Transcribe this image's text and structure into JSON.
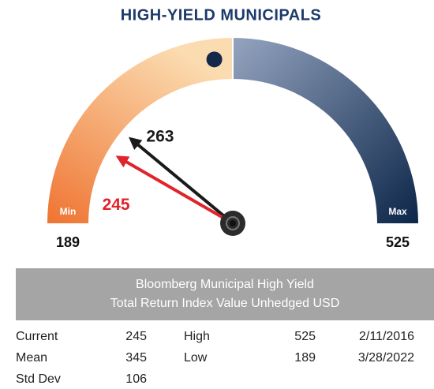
{
  "chart_data": {
    "type": "gauge",
    "title": "HIGH-YIELD MUNICIPALS",
    "min": 189,
    "max": 525,
    "min_label": "Min",
    "max_label": "Max",
    "needles": [
      {
        "value": 263,
        "color": "#1a1a1a"
      },
      {
        "value": 245,
        "color": "#e0242b"
      }
    ],
    "colors": {
      "low": [
        "#ef7432",
        "#fbdcb0"
      ],
      "high": [
        "#94a4c0",
        "#0c2649"
      ],
      "marker": "#14284a"
    }
  },
  "table": {
    "header": [
      "Bloomberg Municipal High Yield",
      "Total Return Index Value Unhedged USD"
    ],
    "rows": [
      [
        "Current",
        245,
        "High",
        525,
        "2/11/2016"
      ],
      [
        "Mean",
        345,
        "Low",
        189,
        "3/28/2022"
      ],
      [
        "Std Dev",
        106
      ]
    ]
  }
}
